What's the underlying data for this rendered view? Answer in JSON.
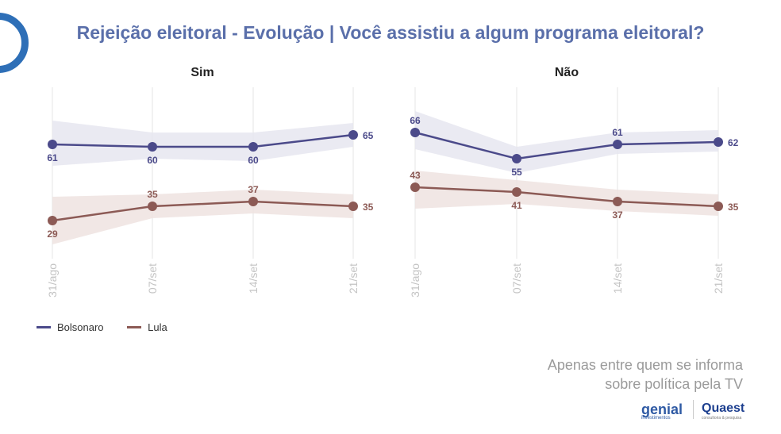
{
  "title": "Rejeição eleitoral - Evolução | Você assistiu a algum programa eleitoral?",
  "note_lines": [
    "Apenas entre quem se informa",
    "sobre política pela TV"
  ],
  "brand_genial": "genial",
  "brand_genial_sub": "investimentos",
  "brand_quaest": "Quaest",
  "brand_quaest_sub": "consultoria & pesquisa",
  "colors": {
    "bolsonaro": "#4b4a8a",
    "lula": "#8c5a55",
    "band_bolsonaro": "#e6e6f0",
    "band_lula": "#efe3e1",
    "grid": "#e4e4e4"
  },
  "chart_data": [
    {
      "type": "line",
      "title": "Sim",
      "categories": [
        "31/ago",
        "07/set",
        "14/set",
        "21/set"
      ],
      "ylim": [
        15,
        85
      ],
      "legend": "bottom-left",
      "series": [
        {
          "name": "Bolsonaro",
          "values": [
            61,
            60,
            60,
            65
          ],
          "band_low": [
            52,
            55,
            54,
            60
          ],
          "band_high": [
            71,
            66,
            66,
            70
          ]
        },
        {
          "name": "Lula",
          "values": [
            29,
            35,
            37,
            35
          ],
          "band_low": [
            19,
            30,
            32,
            30
          ],
          "band_high": [
            39,
            40,
            42,
            40
          ]
        }
      ]
    },
    {
      "type": "line",
      "title": "Não",
      "categories": [
        "31/ago",
        "07/set",
        "14/set",
        "21/set"
      ],
      "ylim": [
        15,
        85
      ],
      "legend": "bottom-left",
      "series": [
        {
          "name": "Bolsonaro",
          "values": [
            66,
            55,
            61,
            62
          ],
          "band_low": [
            59,
            49,
            57,
            58
          ],
          "band_high": [
            75,
            60,
            66,
            67
          ]
        },
        {
          "name": "Lula",
          "values": [
            43,
            41,
            37,
            35
          ],
          "band_low": [
            34,
            36,
            33,
            31
          ],
          "band_high": [
            50,
            46,
            42,
            40
          ]
        }
      ]
    }
  ]
}
